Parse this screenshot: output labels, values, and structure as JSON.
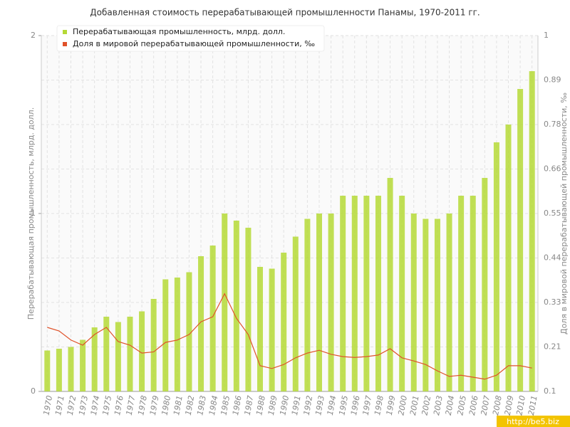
{
  "chart_data": {
    "type": "bar",
    "title": "Добавленная стоимость перерабатывающей промышленности Панамы, 1970-2011 гг.",
    "y_label": "Перерабатывающая промышленность, млрд. долл.",
    "y2_label": "Доля в мировой перерабатывающей промышленности, ‰",
    "watermark": "http://be5.biz",
    "categories": [
      "1970",
      "1971",
      "1972",
      "1973",
      "1974",
      "1975",
      "1976",
      "1977",
      "1978",
      "1979",
      "1980",
      "1981",
      "1982",
      "1983",
      "1984",
      "1985",
      "1986",
      "1987",
      "1988",
      "1989",
      "1990",
      "1991",
      "1992",
      "1993",
      "1994",
      "1995",
      "1996",
      "1997",
      "1998",
      "1999",
      "2000",
      "2001",
      "2002",
      "2003",
      "2004",
      "2005",
      "2006",
      "2007",
      "2008",
      "2009",
      "2010",
      "2011"
    ],
    "series": [
      {
        "name": "Перерабатывающая промышленность, млрд. долл.",
        "type": "bar",
        "color": "#b5d936",
        "values": [
          0.23,
          0.24,
          0.25,
          0.29,
          0.36,
          0.42,
          0.39,
          0.42,
          0.45,
          0.52,
          0.63,
          0.64,
          0.67,
          0.76,
          0.82,
          1.0,
          0.96,
          0.92,
          0.7,
          0.69,
          0.78,
          0.87,
          0.97,
          1.0,
          1.0,
          1.1,
          1.1,
          1.1,
          1.1,
          1.2,
          1.1,
          1.0,
          0.97,
          0.97,
          1.0,
          1.1,
          1.1,
          1.2,
          1.4,
          1.5,
          1.7,
          1.8
        ]
      },
      {
        "name": "Доля в мировой перерабатывающей промышленности, ‰",
        "type": "line",
        "axis": "y2",
        "color": "#e0522a",
        "values": [
          0.262,
          0.253,
          0.23,
          0.217,
          0.244,
          0.262,
          0.226,
          0.217,
          0.197,
          0.2,
          0.224,
          0.23,
          0.244,
          0.276,
          0.289,
          0.347,
          0.285,
          0.244,
          0.165,
          0.158,
          0.168,
          0.185,
          0.197,
          0.204,
          0.194,
          0.188,
          0.186,
          0.188,
          0.192,
          0.208,
          0.185,
          0.177,
          0.168,
          0.152,
          0.138,
          0.141,
          0.136,
          0.131,
          0.141,
          0.165,
          0.165,
          0.159
        ]
      }
    ],
    "ylim": [
      0,
      2
    ],
    "yticks": [
      0,
      1,
      2
    ],
    "y2lim": [
      0.1,
      1
    ],
    "y2ticks": [
      0.1,
      {
        "value": 0.2125,
        "label": "0.21"
      },
      {
        "value": 0.325,
        "label": "0.33"
      },
      {
        "value": 0.4375,
        "label": "0.44"
      },
      0.55,
      {
        "value": 0.6625,
        "label": "0.66"
      },
      {
        "value": 0.775,
        "label": "0.78"
      },
      {
        "value": 0.8875,
        "label": "0.89"
      },
      1
    ],
    "grid": true,
    "legend": "top-left"
  }
}
